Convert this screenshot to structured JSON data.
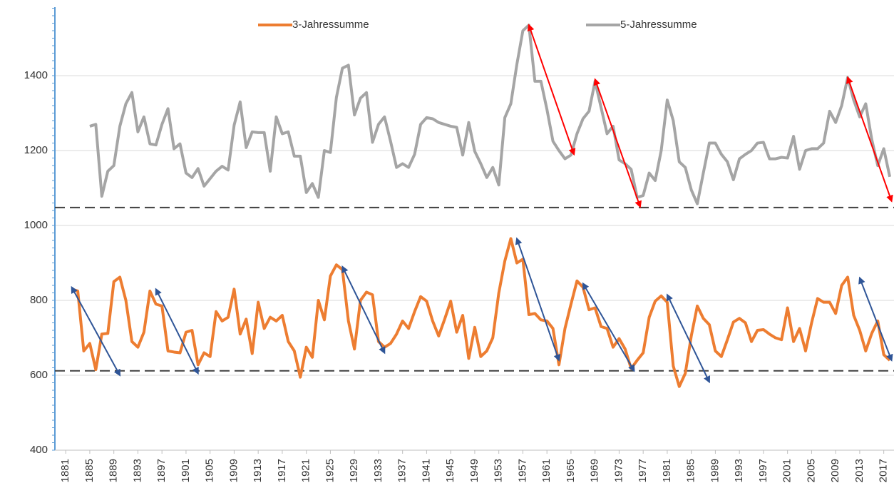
{
  "chart_data": {
    "type": "line",
    "x": [
      1882,
      1883,
      1884,
      1885,
      1886,
      1887,
      1888,
      1889,
      1890,
      1891,
      1892,
      1893,
      1894,
      1895,
      1896,
      1897,
      1898,
      1899,
      1900,
      1901,
      1902,
      1903,
      1904,
      1905,
      1906,
      1907,
      1908,
      1909,
      1910,
      1911,
      1912,
      1913,
      1914,
      1915,
      1916,
      1917,
      1918,
      1919,
      1920,
      1921,
      1922,
      1923,
      1924,
      1925,
      1926,
      1927,
      1928,
      1929,
      1930,
      1931,
      1932,
      1933,
      1934,
      1935,
      1936,
      1937,
      1938,
      1939,
      1940,
      1941,
      1942,
      1943,
      1944,
      1945,
      1946,
      1947,
      1948,
      1949,
      1950,
      1951,
      1952,
      1953,
      1954,
      1955,
      1956,
      1957,
      1958,
      1959,
      1960,
      1961,
      1962,
      1963,
      1964,
      1965,
      1966,
      1967,
      1968,
      1969,
      1970,
      1971,
      1972,
      1973,
      1974,
      1975,
      1976,
      1977,
      1978,
      1979,
      1980,
      1981,
      1982,
      1983,
      1984,
      1985,
      1986,
      1987,
      1988,
      1989,
      1990,
      1991,
      1992,
      1993,
      1994,
      1995,
      1996,
      1997,
      1998,
      1999,
      2000,
      2001,
      2002,
      2003,
      2004,
      2005,
      2006,
      2007,
      2008,
      2009,
      2010,
      2011,
      2012,
      2013,
      2014,
      2015,
      2016,
      2017,
      2018
    ],
    "series": [
      {
        "name": "3-Jahressumme",
        "color": "#ed7d31",
        "values": [
          830,
          825,
          665,
          685,
          615,
          710,
          712,
          850,
          862,
          800,
          690,
          675,
          715,
          825,
          790,
          785,
          665,
          662,
          660,
          715,
          720,
          628,
          660,
          650,
          770,
          745,
          755,
          830,
          710,
          750,
          658,
          795,
          725,
          755,
          745,
          760,
          690,
          665,
          595,
          675,
          648,
          800,
          748,
          865,
          895,
          882,
          745,
          670,
          800,
          822,
          815,
          690,
          675,
          685,
          710,
          745,
          725,
          770,
          810,
          798,
          745,
          705,
          750,
          798,
          715,
          760,
          645,
          728,
          650,
          665,
          700,
          820,
          905,
          965,
          900,
          910,
          762,
          765,
          748,
          745,
          725,
          628,
          725,
          790,
          852,
          835,
          775,
          780,
          730,
          725,
          675,
          698,
          670,
          618,
          640,
          660,
          755,
          798,
          812,
          795,
          625,
          570,
          605,
          705,
          785,
          752,
          735,
          665,
          650,
          695,
          742,
          752,
          740,
          690,
          720,
          722,
          710,
          700,
          695,
          780,
          690,
          725,
          665,
          740,
          805,
          795,
          795,
          765,
          840,
          862,
          760,
          720,
          665,
          712,
          745,
          655,
          640
        ]
      },
      {
        "name": "5-Jahressumme",
        "color": "#a5a5a5",
        "values": [
          null,
          null,
          null,
          1265,
          1270,
          1078,
          1145,
          1160,
          1265,
          1325,
          1355,
          1250,
          1290,
          1218,
          1215,
          1270,
          1312,
          1205,
          1218,
          1140,
          1128,
          1152,
          1105,
          1125,
          1145,
          1158,
          1148,
          1268,
          1330,
          1208,
          1250,
          1248,
          1248,
          1145,
          1290,
          1245,
          1250,
          1185,
          1185,
          1088,
          1112,
          1075,
          1200,
          1195,
          1342,
          1420,
          1428,
          1295,
          1340,
          1355,
          1222,
          1270,
          1290,
          1225,
          1155,
          1165,
          1155,
          1190,
          1270,
          1288,
          1285,
          1275,
          1270,
          1265,
          1262,
          1188,
          1275,
          1198,
          1165,
          1128,
          1155,
          1108,
          1288,
          1325,
          1430,
          1520,
          1535,
          1385,
          1385,
          1310,
          1225,
          1200,
          1178,
          1188,
          1245,
          1285,
          1305,
          1385,
          1315,
          1245,
          1265,
          1175,
          1165,
          1150,
          1075,
          1080,
          1140,
          1120,
          1200,
          1335,
          1280,
          1170,
          1155,
          1095,
          1058,
          1140,
          1220,
          1220,
          1190,
          1170,
          1122,
          1178,
          1190,
          1200,
          1220,
          1222,
          1178,
          1178,
          1182,
          1180,
          1238,
          1150,
          1200,
          1205,
          1205,
          1220,
          1305,
          1275,
          1320,
          1395,
          1335,
          1290,
          1325,
          1230,
          1160,
          1205,
          1130
        ]
      }
    ],
    "xlim": [
      1879.2,
      2018.7
    ],
    "xticks": [
      1881,
      1885,
      1889,
      1893,
      1897,
      1901,
      1905,
      1909,
      1913,
      1917,
      1921,
      1925,
      1929,
      1933,
      1937,
      1941,
      1945,
      1949,
      1953,
      1957,
      1961,
      1965,
      1969,
      1973,
      1977,
      1981,
      1985,
      1989,
      1993,
      1997,
      2001,
      2005,
      2009,
      2013,
      2017
    ],
    "ylim": [
      400,
      1583
    ],
    "yticks": [
      400,
      600,
      800,
      1000,
      1200,
      1400
    ],
    "grid": true,
    "legend": "top",
    "reference_lines": [
      1048,
      612
    ],
    "arrows": [
      {
        "color": "#ff0000",
        "x": [
          1958,
          1965.5
        ],
        "y": [
          1535,
          1190
        ]
      },
      {
        "color": "#ff0000",
        "x": [
          1969,
          1976.5
        ],
        "y": [
          1390,
          1050
        ]
      },
      {
        "color": "#ff0000",
        "x": [
          2011,
          2018.3
        ],
        "y": [
          1395,
          1065
        ]
      },
      {
        "color": "#2f5597",
        "x": [
          1882,
          1890
        ],
        "y": [
          835,
          600
        ]
      },
      {
        "color": "#2f5597",
        "x": [
          1896,
          1903
        ],
        "y": [
          830,
          605
        ]
      },
      {
        "color": "#2f5597",
        "x": [
          1927,
          1934
        ],
        "y": [
          890,
          660
        ]
      },
      {
        "color": "#2f5597",
        "x": [
          1956,
          1963
        ],
        "y": [
          965,
          640
        ]
      },
      {
        "color": "#2f5597",
        "x": [
          1967,
          1975.5
        ],
        "y": [
          845,
          612
        ]
      },
      {
        "color": "#2f5597",
        "x": [
          1981,
          1988
        ],
        "y": [
          815,
          582
        ]
      },
      {
        "color": "#2f5597",
        "x": [
          2013,
          2018.3
        ],
        "y": [
          860,
          640
        ]
      }
    ]
  }
}
